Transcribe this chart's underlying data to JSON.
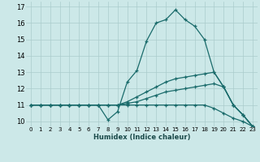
{
  "xlabel": "Humidex (Indice chaleur)",
  "background_color": "#cce8e8",
  "grid_color": "#aacccc",
  "line_color": "#1a6b6b",
  "xlim": [
    -0.5,
    23.5
  ],
  "ylim": [
    9.7,
    17.3
  ],
  "xticks": [
    0,
    1,
    2,
    3,
    4,
    5,
    6,
    7,
    8,
    9,
    10,
    11,
    12,
    13,
    14,
    15,
    16,
    17,
    18,
    19,
    20,
    21,
    22,
    23
  ],
  "yticks": [
    10,
    11,
    12,
    13,
    14,
    15,
    16,
    17
  ],
  "series": [
    {
      "x": [
        0,
        1,
        2,
        3,
        4,
        5,
        6,
        7,
        8,
        9,
        10,
        11,
        12,
        13,
        14,
        15,
        16,
        17,
        18,
        19,
        20,
        21,
        22,
        23
      ],
      "y": [
        11,
        11,
        11,
        11,
        11,
        11,
        11,
        11,
        10.1,
        10.6,
        12.4,
        13.1,
        14.9,
        16.0,
        16.2,
        16.8,
        16.2,
        15.8,
        15.0,
        13.0,
        12.1,
        11.0,
        10.4,
        9.7
      ]
    },
    {
      "x": [
        0,
        1,
        2,
        3,
        4,
        5,
        6,
        7,
        8,
        9,
        10,
        11,
        12,
        13,
        14,
        15,
        16,
        17,
        18,
        19,
        20,
        21,
        22,
        23
      ],
      "y": [
        11,
        11,
        11,
        11,
        11,
        11,
        11,
        11,
        11,
        11,
        11.2,
        11.5,
        11.8,
        12.1,
        12.4,
        12.6,
        12.7,
        12.8,
        12.9,
        13.0,
        12.1,
        11.0,
        10.4,
        9.7
      ]
    },
    {
      "x": [
        0,
        1,
        2,
        3,
        4,
        5,
        6,
        7,
        8,
        9,
        10,
        11,
        12,
        13,
        14,
        15,
        16,
        17,
        18,
        19,
        20,
        21,
        22,
        23
      ],
      "y": [
        11,
        11,
        11,
        11,
        11,
        11,
        11,
        11,
        11,
        11,
        11.1,
        11.2,
        11.4,
        11.6,
        11.8,
        11.9,
        12.0,
        12.1,
        12.2,
        12.3,
        12.1,
        11.0,
        10.4,
        9.7
      ]
    },
    {
      "x": [
        0,
        1,
        2,
        3,
        4,
        5,
        6,
        7,
        8,
        9,
        10,
        11,
        12,
        13,
        14,
        15,
        16,
        17,
        18,
        19,
        20,
        21,
        22,
        23
      ],
      "y": [
        11,
        11,
        11,
        11,
        11,
        11,
        11,
        11,
        11,
        11,
        11.0,
        11.0,
        11.0,
        11.0,
        11.0,
        11.0,
        11.0,
        11.0,
        11.0,
        10.8,
        10.5,
        10.2,
        10.0,
        9.7
      ]
    }
  ]
}
